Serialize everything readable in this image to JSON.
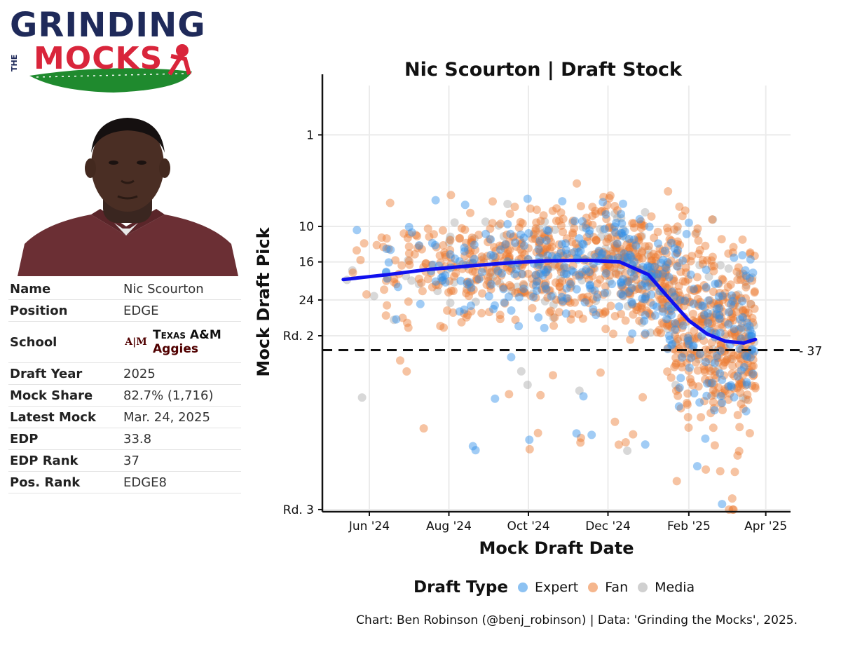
{
  "logo": {
    "line1": "GRINDING",
    "line2": "MOCKS",
    "the": "THE",
    "colors": {
      "navy": "#1f2a5a",
      "red": "#d9253b",
      "green": "#1f8a2e"
    }
  },
  "player": {
    "rows": [
      {
        "label": "Name",
        "value": "Nic Scourton"
      },
      {
        "label": "Position",
        "value": "EDGE"
      },
      {
        "label": "School",
        "value": ""
      },
      {
        "label": "Draft Year",
        "value": "2025"
      },
      {
        "label": "Mock Share",
        "value": "82.7% (1,716)"
      },
      {
        "label": "Latest Mock",
        "value": "Mar. 24, 2025"
      },
      {
        "label": "EDP",
        "value": "33.8"
      },
      {
        "label": "EDP Rank",
        "value": "37"
      },
      {
        "label": "Pos. Rank",
        "value": "EDGE8"
      }
    ],
    "school": {
      "logo_text": "A|M",
      "line1": "Texas A&M",
      "line2": "Aggies",
      "color": "#500000"
    }
  },
  "chart_data": {
    "type": "scatter",
    "title": "Nic Scourton | Draft Stock",
    "xlabel": "Mock Draft Date",
    "ylabel": "Mock Draft Pick",
    "x_ticks": [
      "Jun '24",
      "Aug '24",
      "Oct '24",
      "Dec '24",
      "Feb '25",
      "Apr '25"
    ],
    "x_tick_dates": [
      "2024-06-01",
      "2024-08-01",
      "2024-10-01",
      "2024-12-01",
      "2025-02-01",
      "2025-04-01"
    ],
    "xlim": [
      "2024-04-26",
      "2025-04-20"
    ],
    "y_scale": "sqrt",
    "y_reversed": true,
    "y_ticks": [
      {
        "value": 1,
        "label": "1"
      },
      {
        "value": 10,
        "label": "10"
      },
      {
        "value": 16,
        "label": "16"
      },
      {
        "value": 24,
        "label": "24"
      },
      {
        "value": 33,
        "label": "Rd. 2"
      },
      {
        "value": 97,
        "label": "Rd. 3"
      }
    ],
    "ylim": [
      0,
      98
    ],
    "reference_line": {
      "value": 37,
      "label": "37",
      "style": "dashed"
    },
    "legend": {
      "title": "Draft Type",
      "position": "bottom"
    },
    "series": [
      {
        "name": "Expert",
        "color": "#2f8fe8"
      },
      {
        "name": "Fan",
        "color": "#ec7a30"
      },
      {
        "name": "Media",
        "color": "#a9a9a9"
      }
    ],
    "trend": {
      "color": "#1010ee",
      "points": [
        [
          "2024-05-12",
          19.5
        ],
        [
          "2024-06-15",
          18.5
        ],
        [
          "2024-07-15",
          17.5
        ],
        [
          "2024-08-15",
          16.8
        ],
        [
          "2024-09-15",
          16.2
        ],
        [
          "2024-10-15",
          15.8
        ],
        [
          "2024-11-15",
          15.7
        ],
        [
          "2024-12-10",
          16.0
        ],
        [
          "2025-01-01",
          18.5
        ],
        [
          "2025-01-15",
          23.0
        ],
        [
          "2025-02-01",
          29.0
        ],
        [
          "2025-02-15",
          32.5
        ],
        [
          "2025-03-01",
          34.5
        ],
        [
          "2025-03-15",
          35.0
        ],
        [
          "2025-03-24",
          34.0
        ]
      ]
    }
  },
  "caption": "Chart: Ben Robinson (@benj_robinson) | Data: 'Grinding the Mocks', 2025."
}
